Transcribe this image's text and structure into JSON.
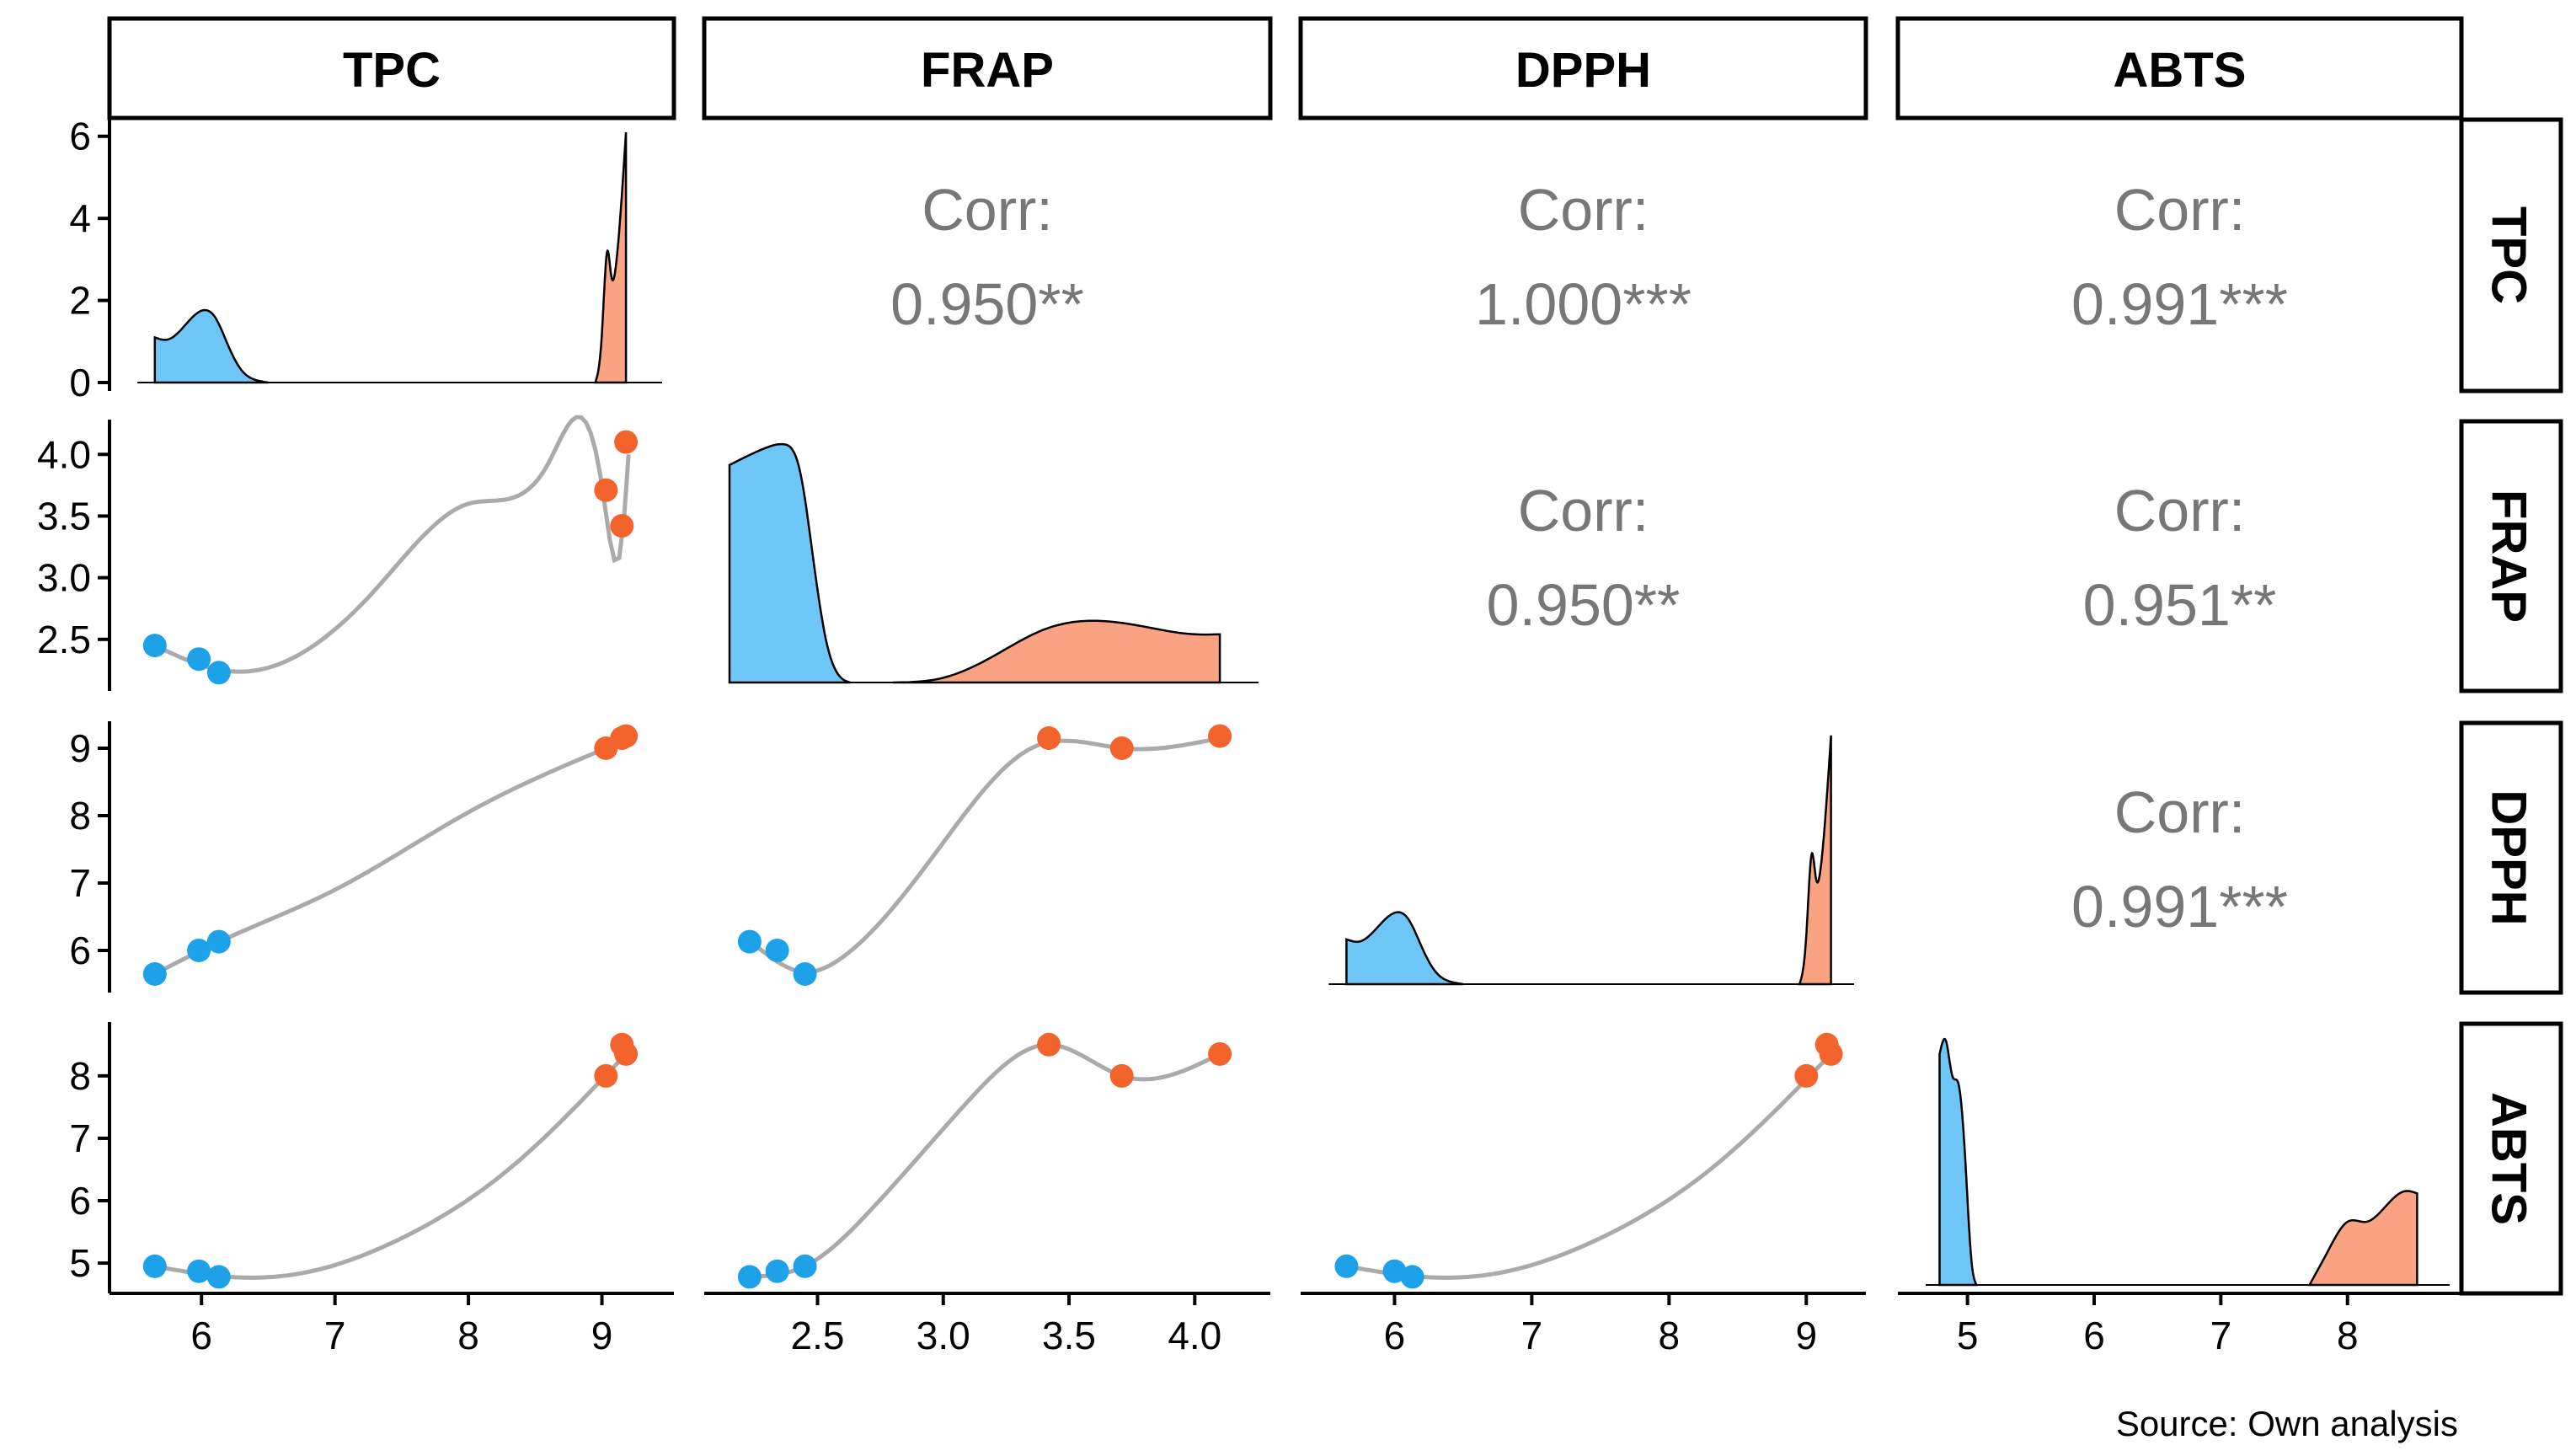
{
  "chart_data": {
    "type": "scatter",
    "title": "",
    "variables": [
      "TPC",
      "FRAP",
      "DPPH",
      "ABTS"
    ],
    "source_note": "Source: Own analysis",
    "corr_label": "Corr:",
    "correlations": [
      {
        "row": "FRAP",
        "col": "TPC",
        "value": "0.950**"
      },
      {
        "row": "DPPH",
        "col": "TPC",
        "value": "1.000***"
      },
      {
        "row": "ABTS",
        "col": "TPC",
        "value": "0.991***"
      },
      {
        "row": "DPPH",
        "col": "FRAP",
        "value": "0.950**"
      },
      {
        "row": "ABTS",
        "col": "FRAP",
        "value": "0.951**"
      },
      {
        "row": "ABTS",
        "col": "DPPH",
        "value": "0.991***"
      }
    ],
    "groups": [
      {
        "color": "#1da1e8",
        "fill": "#6ec6f7"
      },
      {
        "color": "#f2642c",
        "fill": "#f9a383"
      }
    ],
    "points": [
      {
        "group": 0,
        "TPC": 5.65,
        "FRAP": 2.45,
        "DPPH": 5.65,
        "ABTS": 4.95
      },
      {
        "group": 0,
        "TPC": 5.98,
        "FRAP": 2.34,
        "DPPH": 6.0,
        "ABTS": 4.87
      },
      {
        "group": 0,
        "TPC": 6.13,
        "FRAP": 2.23,
        "DPPH": 6.13,
        "ABTS": 4.78
      },
      {
        "group": 1,
        "TPC": 9.03,
        "FRAP": 3.71,
        "DPPH": 9.0,
        "ABTS": 8.0
      },
      {
        "group": 1,
        "TPC": 9.15,
        "FRAP": 3.42,
        "DPPH": 9.15,
        "ABTS": 8.5
      },
      {
        "group": 1,
        "TPC": 9.18,
        "FRAP": 4.1,
        "DPPH": 9.18,
        "ABTS": 8.35
      }
    ],
    "ranges": {
      "TPC": [
        5.5,
        9.35
      ],
      "FRAP": [
        2.15,
        4.2
      ],
      "DPPH": [
        5.5,
        9.25
      ],
      "ABTS": [
        4.65,
        8.7
      ]
    },
    "ticks": {
      "TPC": [
        "6",
        "7",
        "8",
        "9"
      ],
      "FRAP": [
        "2.5",
        "3.0",
        "3.5",
        "4.0"
      ],
      "DPPH": [
        "6",
        "7",
        "8",
        "9"
      ],
      "ABTS": [
        "5",
        "6",
        "7",
        "8"
      ]
    },
    "density_ylim": [
      0,
      6.2
    ],
    "density_ticks": [
      "0",
      "2",
      "4",
      "6"
    ]
  }
}
